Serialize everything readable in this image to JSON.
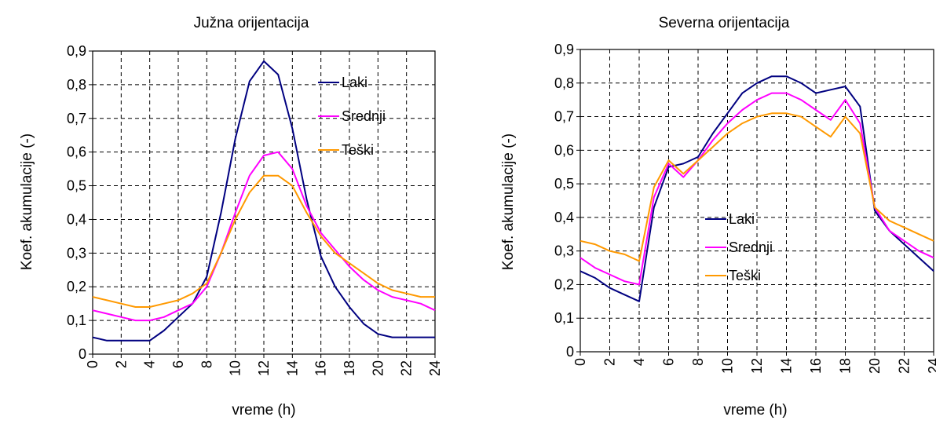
{
  "chart_data": [
    {
      "type": "line",
      "title": "Južna orijentacija",
      "xlabel": "vreme (h)",
      "ylabel": "Koef. akumulacije (-)",
      "xlim": [
        0,
        24
      ],
      "ylim": [
        0,
        0.9
      ],
      "xticks": [
        "0",
        "2",
        "4",
        "6",
        "8",
        "10",
        "12",
        "14",
        "16",
        "18",
        "20",
        "22",
        "24"
      ],
      "yticks": [
        "0",
        "0,1",
        "0,2",
        "0,3",
        "0,4",
        "0,5",
        "0,6",
        "0,7",
        "0,8",
        "0,9"
      ],
      "grid": true,
      "legend_position": "top-right",
      "x": [
        0,
        1,
        2,
        3,
        4,
        5,
        6,
        7,
        8,
        9,
        10,
        11,
        12,
        13,
        14,
        15,
        16,
        17,
        18,
        19,
        20,
        21,
        22,
        23,
        24
      ],
      "series": [
        {
          "name": "Laki",
          "color": "#000080",
          "values": [
            0.05,
            0.04,
            0.04,
            0.04,
            0.04,
            0.07,
            0.11,
            0.15,
            0.23,
            0.42,
            0.64,
            0.81,
            0.87,
            0.83,
            0.67,
            0.46,
            0.29,
            0.2,
            0.14,
            0.09,
            0.06,
            0.05,
            0.05,
            0.05,
            0.05
          ]
        },
        {
          "name": "Srednji",
          "color": "#ff00ff",
          "values": [
            0.13,
            0.12,
            0.11,
            0.1,
            0.1,
            0.11,
            0.13,
            0.15,
            0.2,
            0.3,
            0.42,
            0.53,
            0.59,
            0.6,
            0.55,
            0.44,
            0.36,
            0.31,
            0.26,
            0.22,
            0.19,
            0.17,
            0.16,
            0.15,
            0.13
          ]
        },
        {
          "name": "Teški",
          "color": "#ff9900",
          "values": [
            0.17,
            0.16,
            0.15,
            0.14,
            0.14,
            0.15,
            0.16,
            0.18,
            0.21,
            0.3,
            0.4,
            0.48,
            0.53,
            0.53,
            0.5,
            0.42,
            0.35,
            0.3,
            0.27,
            0.24,
            0.21,
            0.19,
            0.18,
            0.17,
            0.17
          ]
        }
      ]
    },
    {
      "type": "line",
      "title": "Severna orijentacija",
      "xlabel": "vreme (h)",
      "ylabel": "Koef. akumulacije (-)",
      "xlim": [
        0,
        24
      ],
      "ylim": [
        0,
        0.9
      ],
      "xticks": [
        "0",
        "2",
        "4",
        "6",
        "8",
        "10",
        "12",
        "14",
        "16",
        "18",
        "20",
        "22",
        "24"
      ],
      "yticks": [
        "0",
        "0,1",
        "0,2",
        "0,3",
        "0,4",
        "0,5",
        "0,6",
        "0,7",
        "0,8",
        "0,9"
      ],
      "grid": true,
      "legend_position": "center",
      "x": [
        0,
        1,
        2,
        3,
        4,
        5,
        6,
        7,
        8,
        9,
        10,
        11,
        12,
        13,
        14,
        15,
        16,
        17,
        18,
        19,
        20,
        21,
        22,
        23,
        24
      ],
      "series": [
        {
          "name": "Laki",
          "color": "#000080",
          "values": [
            0.24,
            0.22,
            0.19,
            0.17,
            0.15,
            0.43,
            0.55,
            0.56,
            0.58,
            0.65,
            0.71,
            0.77,
            0.8,
            0.82,
            0.82,
            0.8,
            0.77,
            0.78,
            0.79,
            0.73,
            0.42,
            0.36,
            0.32,
            0.28,
            0.24
          ]
        },
        {
          "name": "Srednji",
          "color": "#ff00ff",
          "values": [
            0.28,
            0.25,
            0.23,
            0.21,
            0.2,
            0.46,
            0.56,
            0.52,
            0.57,
            0.63,
            0.68,
            0.72,
            0.75,
            0.77,
            0.77,
            0.75,
            0.72,
            0.69,
            0.75,
            0.68,
            0.43,
            0.36,
            0.33,
            0.3,
            0.28
          ]
        },
        {
          "name": "Teški",
          "color": "#ff9900",
          "values": [
            0.33,
            0.32,
            0.3,
            0.29,
            0.27,
            0.49,
            0.57,
            0.53,
            0.57,
            0.61,
            0.65,
            0.68,
            0.7,
            0.71,
            0.71,
            0.7,
            0.67,
            0.64,
            0.7,
            0.65,
            0.43,
            0.39,
            0.37,
            0.35,
            0.33
          ]
        }
      ]
    }
  ]
}
